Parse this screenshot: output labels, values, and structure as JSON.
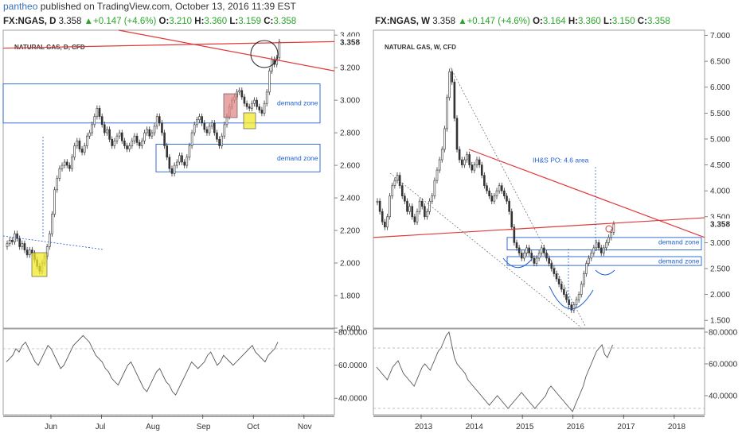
{
  "publish": {
    "author": "pantheo",
    "text": " published on TradingView.com, October 13, 2016 11:39 EST"
  },
  "left_header": {
    "symbol": "FX:NGAS, D",
    "price": "3.358",
    "change": "+0.147 (+4.6%)",
    "o": "3.210",
    "h": "3.360",
    "l": "3.159",
    "c": "3.358"
  },
  "right_header": {
    "symbol": "FX:NGAS, W",
    "price": "3.358",
    "change": "+0.147 (+4.6%)",
    "o": "3.164",
    "h": "3.360",
    "l": "3.150",
    "c": "3.358"
  },
  "colors": {
    "bull": "#ffffff",
    "bear": "#333333",
    "trend": "#e03a3a",
    "zone": "#1f5fd1",
    "highlight_yellow": "#f2ea2a",
    "highlight_red": "#e38a8a",
    "rsi": "#555555"
  },
  "chart_data": [
    {
      "type": "candlestick",
      "title": "NATURAL GAS, D, CFD",
      "xlabel": "",
      "ylabel": "",
      "x_ticks": [
        "Jun",
        "Jul",
        "Aug",
        "Sep",
        "Oct",
        "Nov"
      ],
      "y_ticks": [
        "1.600",
        "1.800",
        "2.000",
        "2.200",
        "2.400",
        "2.600",
        "2.800",
        "3.000",
        "3.200",
        "3.400"
      ],
      "ylim": [
        1.6,
        3.43
      ],
      "last_price_label": "3.358",
      "annotations": [
        "demand zone",
        "demand zone"
      ],
      "demand_zones": [
        [
          2.86,
          3.1
        ],
        [
          2.56,
          2.73
        ]
      ],
      "close_series": [
        2.12,
        2.14,
        2.13,
        2.18,
        2.15,
        2.1,
        2.12,
        2.08,
        2.05,
        2.08,
        2.06,
        2.02,
        1.98,
        1.95,
        2.0,
        2.04,
        2.1,
        2.18,
        2.3,
        2.45,
        2.52,
        2.58,
        2.6,
        2.62,
        2.6,
        2.58,
        2.65,
        2.72,
        2.75,
        2.7,
        2.68,
        2.72,
        2.78,
        2.8,
        2.85,
        2.9,
        2.95,
        2.9,
        2.85,
        2.8,
        2.82,
        2.76,
        2.72,
        2.75,
        2.78,
        2.8,
        2.75,
        2.72,
        2.7,
        2.72,
        2.75,
        2.78,
        2.74,
        2.72,
        2.75,
        2.8,
        2.82,
        2.78,
        2.8,
        2.84,
        2.9,
        2.86,
        2.8,
        2.72,
        2.65,
        2.58,
        2.55,
        2.6,
        2.62,
        2.66,
        2.62,
        2.6,
        2.65,
        2.72,
        2.8,
        2.85,
        2.88,
        2.9,
        2.86,
        2.82,
        2.8,
        2.84,
        2.86,
        2.8,
        2.76,
        2.72,
        2.78,
        2.85,
        2.9,
        2.96,
        3.0,
        3.02,
        3.05,
        3.06,
        3.02,
        2.98,
        2.96,
        2.95,
        2.98,
        3.0,
        2.96,
        2.94,
        2.92,
        2.98,
        3.05,
        3.18,
        3.25,
        3.22,
        3.26,
        3.358
      ],
      "rsi": {
        "ticks": [
          "40.0000",
          "60.0000",
          "80.0000"
        ],
        "ylim": [
          30,
          82
        ],
        "values": [
          62,
          64,
          66,
          70,
          68,
          72,
          74,
          70,
          66,
          62,
          60,
          64,
          68,
          72,
          70,
          66,
          62,
          58,
          60,
          64,
          68,
          72,
          74,
          76,
          78,
          76,
          74,
          70,
          66,
          64,
          62,
          58,
          56,
          52,
          50,
          48,
          52,
          56,
          60,
          62,
          58,
          54,
          50,
          46,
          44,
          48,
          52,
          56,
          58,
          54,
          50,
          48,
          44,
          42,
          46,
          50,
          54,
          58,
          62,
          60,
          58,
          60,
          62,
          66,
          68,
          64,
          60,
          62,
          66,
          64,
          62,
          60,
          62,
          64,
          66,
          68,
          70,
          72,
          68,
          66,
          64,
          62,
          66,
          68,
          70,
          74
        ]
      }
    },
    {
      "type": "candlestick",
      "title": "NATURAL GAS, W, CFD",
      "xlabel": "",
      "ylabel": "",
      "x_ticks": [
        "2013",
        "2014",
        "2015",
        "2016",
        "2017",
        "2018"
      ],
      "y_ticks": [
        "1.500",
        "2.000",
        "2.500",
        "3.000",
        "3.500",
        "4.000",
        "4.500",
        "5.000",
        "5.500",
        "6.000",
        "6.500",
        "7.000"
      ],
      "ylim": [
        1.35,
        7.1
      ],
      "last_price_label": "3.358",
      "annotations": [
        "IH&S PO: 4.6 area",
        "demand zone",
        "demand zone"
      ],
      "demand_zones": [
        [
          2.86,
          3.1
        ],
        [
          2.56,
          2.73
        ]
      ],
      "close_series": [
        3.8,
        3.6,
        3.4,
        3.3,
        3.5,
        3.9,
        4.1,
        4.2,
        4.3,
        4.1,
        3.9,
        3.8,
        3.6,
        3.7,
        3.5,
        3.4,
        3.6,
        3.8,
        3.7,
        3.5,
        3.6,
        3.8,
        3.9,
        4.2,
        4.4,
        4.6,
        4.8,
        5.2,
        5.8,
        6.3,
        6.1,
        5.4,
        4.8,
        4.6,
        4.5,
        4.6,
        4.7,
        4.5,
        4.4,
        4.5,
        4.6,
        4.5,
        4.3,
        4.1,
        4.0,
        3.9,
        3.8,
        3.9,
        4.0,
        4.1,
        4.0,
        3.9,
        3.8,
        3.6,
        3.3,
        3.0,
        2.9,
        2.8,
        2.7,
        2.8,
        2.9,
        2.8,
        2.7,
        2.6,
        2.7,
        2.8,
        2.9,
        2.8,
        2.7,
        2.6,
        2.5,
        2.4,
        2.3,
        2.2,
        2.1,
        2.0,
        1.9,
        1.8,
        1.7,
        1.8,
        1.9,
        2.0,
        2.2,
        2.4,
        2.6,
        2.7,
        2.8,
        2.9,
        3.0,
        2.9,
        2.8,
        2.9,
        3.0,
        3.1,
        3.2,
        3.358
      ],
      "rsi": {
        "ticks": [
          "40.0000",
          "60.0000",
          "80.0000"
        ],
        "ylim": [
          28,
          82
        ],
        "values": [
          58,
          56,
          54,
          52,
          50,
          54,
          58,
          60,
          62,
          58,
          54,
          52,
          50,
          48,
          46,
          50,
          54,
          58,
          60,
          58,
          56,
          60,
          64,
          68,
          70,
          74,
          78,
          80,
          72,
          64,
          60,
          58,
          56,
          54,
          50,
          48,
          46,
          44,
          42,
          40,
          38,
          36,
          34,
          36,
          38,
          40,
          38,
          36,
          34,
          32,
          34,
          36,
          38,
          40,
          42,
          40,
          38,
          36,
          34,
          32,
          34,
          36,
          38,
          40,
          44,
          46,
          44,
          42,
          40,
          38,
          36,
          34,
          32,
          30,
          34,
          38,
          42,
          46,
          52,
          56,
          60,
          64,
          68,
          70,
          72,
          66,
          64,
          68,
          72
        ]
      }
    }
  ]
}
